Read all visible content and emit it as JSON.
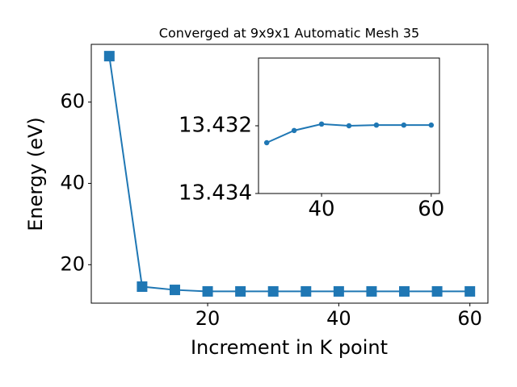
{
  "chart_data": [
    {
      "type": "line",
      "title": "Converged at 9x9x1 Automatic Mesh 35",
      "x_label": "Increment in K point",
      "y_label": "Energy (eV)",
      "x": [
        5,
        10,
        15,
        20,
        25,
        30,
        35,
        40,
        45,
        50,
        55,
        60
      ],
      "series": [
        {
          "color": "#1f77b4",
          "marker": "square",
          "values": [
            71.3,
            14.6,
            13.8,
            13.43,
            13.43,
            13.43,
            13.43,
            13.43,
            13.43,
            13.43,
            13.43,
            13.43
          ]
        }
      ],
      "xlim": [
        2.25,
        62.75
      ],
      "ylim": [
        10.54,
        74.2
      ],
      "xticks": [
        20,
        40,
        60
      ],
      "yticks": [
        20,
        40,
        60
      ]
    },
    {
      "type": "line",
      "x": [
        30,
        35,
        40,
        45,
        50,
        55,
        60
      ],
      "series": [
        {
          "color": "#1f77b4",
          "marker": "circle",
          "values": [
            13.4325,
            13.43214,
            13.43195,
            13.432,
            13.43198,
            13.43198,
            13.43198
          ]
        }
      ],
      "xlim": [
        28.5,
        61.5
      ],
      "ylim": [
        13.434,
        13.43
      ],
      "xticks": [
        40,
        60
      ],
      "yticks": [
        13.432,
        13.434
      ]
    }
  ]
}
